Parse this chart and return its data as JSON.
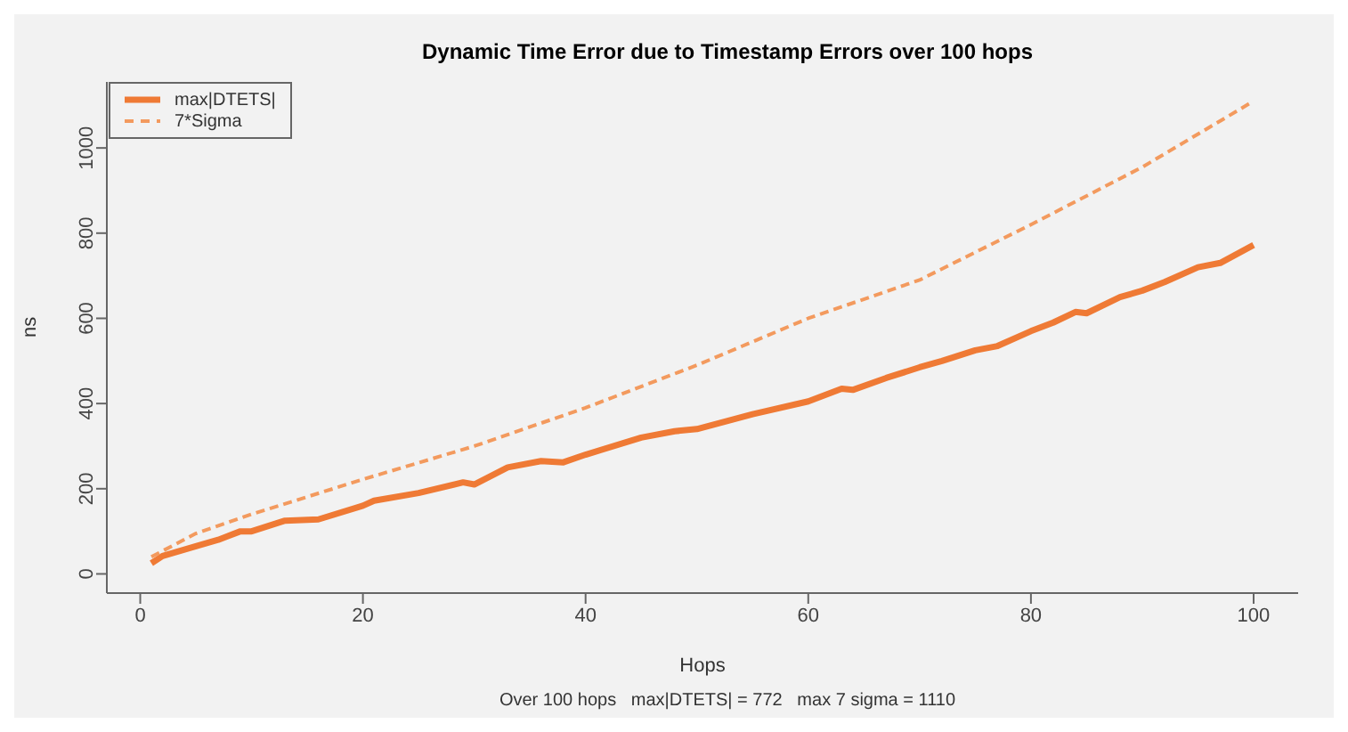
{
  "chart_data": {
    "type": "line",
    "title": "Dynamic Time Error due to Timestamp Errors over 100 hops",
    "xlabel": "Hops",
    "ylabel": "ns",
    "annotations": [
      "Over 100 hops   max|DTETS| = 772   max 7 sigma = 1110"
    ],
    "xlim": [
      -3,
      104
    ],
    "xticks": [
      0,
      20,
      40,
      60,
      80,
      100
    ],
    "ylim": [
      -45,
      1155
    ],
    "yticks": [
      0,
      200,
      400,
      600,
      800,
      1000
    ],
    "grid": false,
    "legend": "top left",
    "marker": "none",
    "series": [
      {
        "name": "max|DTETS|",
        "color": "#ef7a35",
        "line_style": "solid",
        "x": [
          1,
          2,
          5,
          7,
          9,
          10,
          13,
          16,
          20,
          21,
          25,
          29,
          30,
          33,
          36,
          38,
          40,
          45,
          48,
          50,
          55,
          60,
          63,
          64,
          67,
          70,
          72,
          75,
          77,
          80,
          82,
          84,
          85,
          88,
          90,
          92,
          95,
          97,
          100
        ],
        "values": [
          25,
          42,
          65,
          80,
          100,
          100,
          125,
          128,
          160,
          172,
          190,
          215,
          210,
          250,
          265,
          262,
          280,
          320,
          335,
          340,
          375,
          405,
          435,
          432,
          460,
          485,
          500,
          525,
          535,
          570,
          590,
          615,
          612,
          650,
          665,
          685,
          720,
          730,
          772
        ]
      },
      {
        "name": "7*Sigma",
        "color": "#f39a5e",
        "line_style": "dashed",
        "x": [
          1,
          5,
          10,
          20,
          30,
          40,
          50,
          60,
          70,
          80,
          90,
          100
        ],
        "values": [
          40,
          95,
          140,
          222,
          300,
          390,
          490,
          600,
          690,
          820,
          955,
          1110
        ]
      }
    ]
  }
}
